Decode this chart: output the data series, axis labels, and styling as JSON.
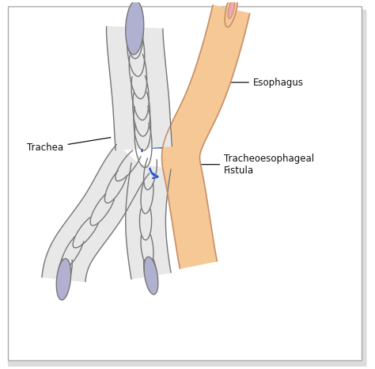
{
  "bg_color": "#ffffff",
  "trachea_fill": "#e8e8e8",
  "trachea_ring_stroke": "#777777",
  "lumen_fill": "#b0b0d0",
  "lumen_stroke": "#777777",
  "esophagus_fill": "#f5c896",
  "esophagus_stroke": "#c8906a",
  "esophagus_inner_fill": "#f0a8b0",
  "arrow_color": "#2255cc",
  "label_color": "#111111",
  "labels": {
    "trachea": "Trachea",
    "esophagus": "Esophagus",
    "fistula": "Tracheoesophageal\nFistula"
  }
}
